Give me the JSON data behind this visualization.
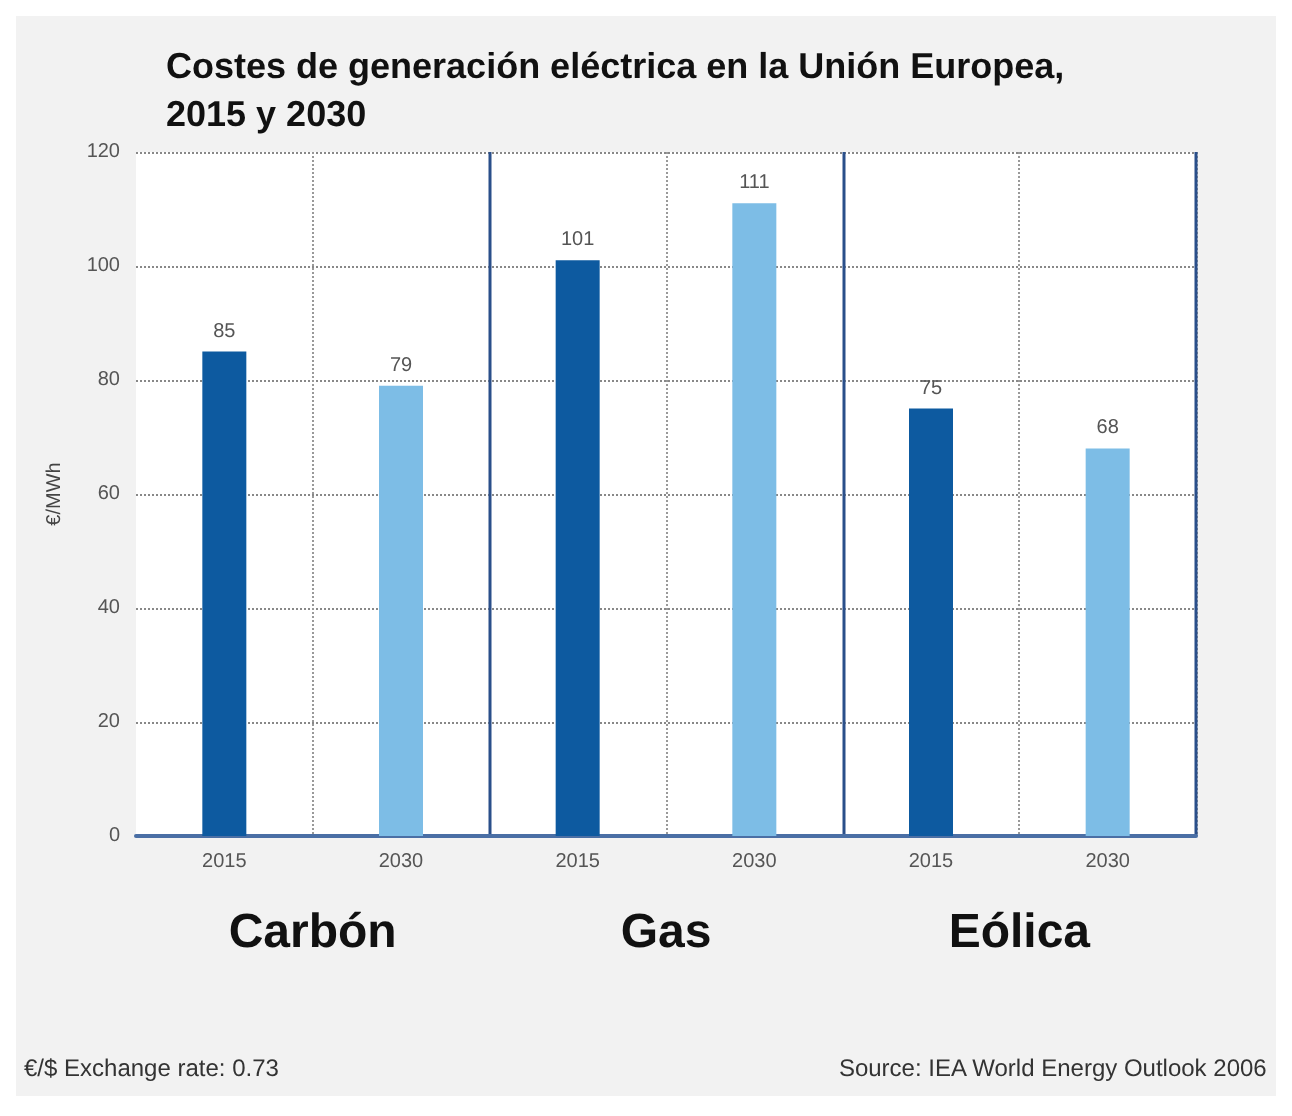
{
  "chart_data": {
    "type": "bar",
    "title": "Costes de generación eléctrica en la Unión Europea,\n2015 y 2030",
    "ylabel": "€/MWh",
    "categories": [
      "2015",
      "2030",
      "2015",
      "2030",
      "2015",
      "2030"
    ],
    "values": [
      85,
      79,
      101,
      111,
      75,
      68
    ],
    "colors": [
      "#0d5aa0",
      "#7dbde6",
      "#0d5aa0",
      "#7dbde6",
      "#0d5aa0",
      "#7dbde6"
    ],
    "data_labels": true,
    "ylim": [
      0,
      120
    ],
    "yticks": [
      0,
      20,
      40,
      60,
      80,
      100,
      120
    ],
    "grid": true,
    "annotations": [
      "Carbón",
      "Gas",
      "Eólica",
      "€/$ Exchange rate: 0.73",
      "Source: IEA World Energy Outlook 2006"
    ]
  }
}
